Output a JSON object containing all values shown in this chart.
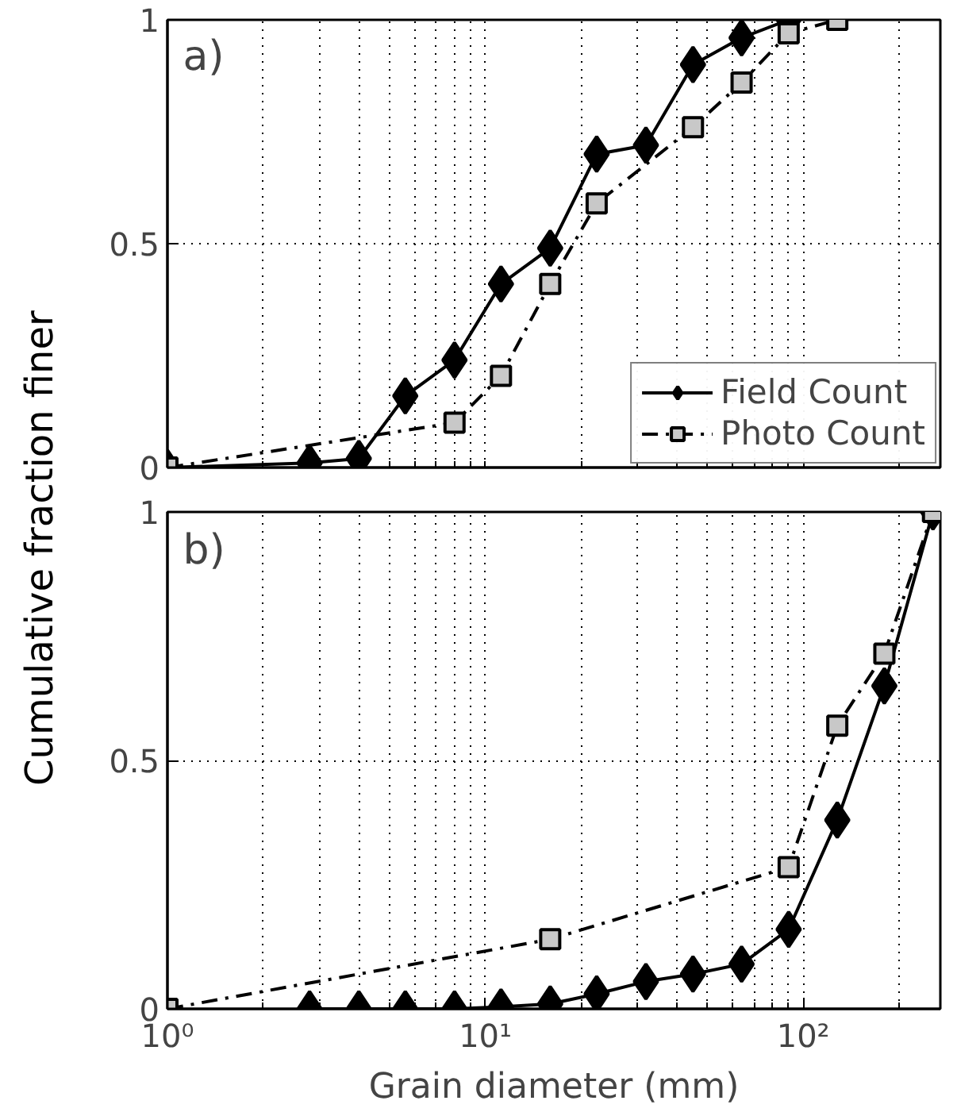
{
  "chart_data": [
    {
      "type": "line",
      "ylabel": "Cumulative fraction finer",
      "annotations": [
        "a)"
      ],
      "log": "x",
      "grid": true,
      "legend": "bottom right",
      "tick_labels": "y",
      "xlim": [
        1,
        270
      ],
      "ylim": [
        0,
        1
      ],
      "xticks": [
        {
          "value": 1,
          "label": null
        },
        {
          "value": 2,
          "label": null
        },
        {
          "value": 3,
          "label": null
        },
        {
          "value": 4,
          "label": null
        },
        {
          "value": 5,
          "label": null
        },
        {
          "value": 6,
          "label": null
        },
        {
          "value": 7,
          "label": null
        },
        {
          "value": 8,
          "label": null
        },
        {
          "value": 9,
          "label": null
        },
        {
          "value": 10,
          "label": null
        },
        {
          "value": 20,
          "label": null
        },
        {
          "value": 30,
          "label": null
        },
        {
          "value": 40,
          "label": null
        },
        {
          "value": 50,
          "label": null
        },
        {
          "value": 60,
          "label": null
        },
        {
          "value": 70,
          "label": null
        },
        {
          "value": 80,
          "label": null
        },
        {
          "value": 90,
          "label": null
        },
        {
          "value": 100,
          "label": null
        },
        {
          "value": 200,
          "label": null
        }
      ],
      "yticks": [
        0,
        0.5,
        1
      ],
      "series": [
        {
          "name": "Field Count",
          "color": "#000000",
          "marker": "diamond",
          "line_style": "solid",
          "x": [
            1,
            2.8,
            4,
            5.6,
            8,
            11.2,
            16,
            22.4,
            32,
            45,
            64,
            90
          ],
          "values": [
            0,
            0.01,
            0.02,
            0.16,
            0.24,
            0.41,
            0.49,
            0.7,
            0.72,
            0.9,
            0.96,
            1.0
          ]
        },
        {
          "name": "Photo Count",
          "color": "#c8c8c8",
          "marker": "square",
          "line_style": "dashdot",
          "x": [
            1,
            8,
            11.2,
            16,
            22.4,
            45,
            64,
            90,
            128
          ],
          "values": [
            0,
            0.1,
            0.205,
            0.41,
            0.59,
            0.76,
            0.86,
            0.97,
            1.0
          ]
        }
      ]
    },
    {
      "type": "line",
      "xlabel": "Grain diameter (mm)",
      "annotations": [
        "b)"
      ],
      "log": "x",
      "grid": true,
      "xlim": [
        1,
        270
      ],
      "ylim": [
        0,
        1
      ],
      "xticks": [
        {
          "value": 1,
          "label": "10⁰"
        },
        {
          "value": 2,
          "label": null
        },
        {
          "value": 3,
          "label": null
        },
        {
          "value": 4,
          "label": null
        },
        {
          "value": 5,
          "label": null
        },
        {
          "value": 6,
          "label": null
        },
        {
          "value": 7,
          "label": null
        },
        {
          "value": 8,
          "label": null
        },
        {
          "value": 9,
          "label": null
        },
        {
          "value": 10,
          "label": "10¹"
        },
        {
          "value": 20,
          "label": null
        },
        {
          "value": 30,
          "label": null
        },
        {
          "value": 40,
          "label": null
        },
        {
          "value": 50,
          "label": null
        },
        {
          "value": 60,
          "label": null
        },
        {
          "value": 70,
          "label": null
        },
        {
          "value": 80,
          "label": null
        },
        {
          "value": 90,
          "label": null
        },
        {
          "value": 100,
          "label": "10²"
        },
        {
          "value": 200,
          "label": null
        }
      ],
      "yticks": [
        0,
        0.5,
        1
      ],
      "series": [
        {
          "color": "#000000",
          "marker": "diamond",
          "line_style": "solid",
          "x": [
            2.8,
            4,
            5.6,
            8,
            11.2,
            16,
            22.4,
            32,
            45,
            64,
            90,
            128,
            180,
            256
          ],
          "values": [
            0,
            0,
            0,
            0,
            0.004,
            0.01,
            0.03,
            0.055,
            0.07,
            0.09,
            0.16,
            0.38,
            0.65,
            1.0
          ]
        },
        {
          "color": "#c8c8c8",
          "marker": "square",
          "line_style": "dashdot",
          "x": [
            1,
            16,
            90,
            128,
            180,
            256
          ],
          "values": [
            0,
            0.14,
            0.285,
            0.57,
            0.715,
            1.0
          ]
        }
      ]
    }
  ]
}
